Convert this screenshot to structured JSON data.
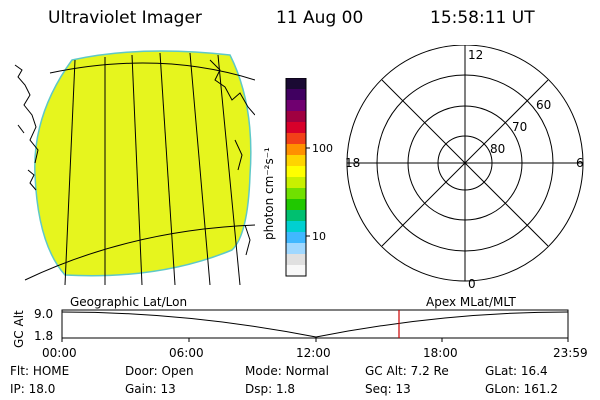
{
  "header": {
    "instrument": "Ultraviolet Imager",
    "date": "11 Aug 00",
    "time": "15:58:11 UT"
  },
  "colorbar": {
    "unit_label": "photon cm⁻²s⁻¹",
    "ticks": [
      "100",
      "10"
    ],
    "colors_top_to_bottom": [
      "#1a0a33",
      "#400060",
      "#700070",
      "#a00040",
      "#d8002a",
      "#f24018",
      "#ff9000",
      "#ffd400",
      "#ffff00",
      "#c8f000",
      "#70e000",
      "#20c800",
      "#00c070",
      "#00d0d0",
      "#40b8ff",
      "#a0d8ff",
      "#e0e0e0",
      "#f8f8f8"
    ]
  },
  "image_panel": {
    "fill_color": "#e6f51e"
  },
  "polar_plot": {
    "mlt_labels": {
      "top": "12",
      "left": "18",
      "right": "6",
      "bottom": "0"
    },
    "lat_labels": [
      "60",
      "70",
      "80"
    ]
  },
  "timeline": {
    "left_caption": "Geographic Lat/Lon",
    "right_caption": "Apex MLat/MLT",
    "axis_label": "GC Alt",
    "y_ticks": [
      "9.0",
      "1.8"
    ],
    "x_ticks": [
      "00:00",
      "06:00",
      "12:00",
      "18:00",
      "23:59"
    ],
    "current_marker_time": "15:58",
    "marker_color": "#cc0000"
  },
  "info": {
    "row1": [
      {
        "label": "Flt:",
        "value": "HOME"
      },
      {
        "label": "Door:",
        "value": "Open"
      },
      {
        "label": "Mode:",
        "value": "Normal"
      },
      {
        "label": "GC Alt:",
        "value": "7.2 Re"
      },
      {
        "label": "GLat:",
        "value": "16.4"
      }
    ],
    "row2": [
      {
        "label": "IP:",
        "value": "18.0"
      },
      {
        "label": "Gain:",
        "value": "13"
      },
      {
        "label": "Dsp:",
        "value": "1.8"
      },
      {
        "label": "Seq:",
        "value": "13"
      },
      {
        "label": "GLon:",
        "value": "161.2"
      }
    ]
  }
}
